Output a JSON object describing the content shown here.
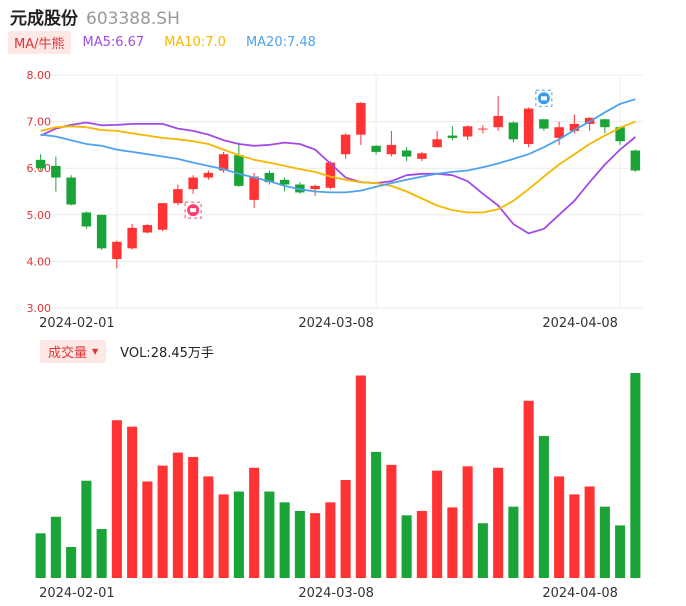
{
  "header": {
    "name": "元成股份",
    "code": "603388.SH"
  },
  "ma_legend": {
    "toggle_label": "MA/牛熊",
    "ma5": "MA5:6.67",
    "ma10": "MA10:7.0",
    "ma20": "MA20:7.48"
  },
  "volume_legend": {
    "toggle_label": "成交量",
    "value_text": "VOL:28.45万手"
  },
  "colors": {
    "up": "#ff3333",
    "down": "#1aa336",
    "ma5": "#a349e8",
    "ma10": "#f5b800",
    "ma20": "#4da3f0"
  },
  "chart_data": [
    {
      "type": "candlestick",
      "title": "",
      "y_ticks": [
        "3.00",
        "4.00",
        "5.00",
        "6.00",
        "7.00",
        "8.00"
      ],
      "ylim": [
        3.0,
        8.0
      ],
      "x_tick_labels": [
        {
          "index": 5,
          "label": "2024-02-01"
        },
        {
          "index": 22,
          "label": "2024-03-08"
        },
        {
          "index": 38,
          "label": "2024-04-08"
        }
      ],
      "candles": [
        {
          "open": 6.18,
          "close": 6.0,
          "high": 6.3,
          "low": 5.95
        },
        {
          "open": 6.05,
          "close": 5.8,
          "high": 6.25,
          "low": 5.5
        },
        {
          "open": 5.8,
          "close": 5.22,
          "high": 5.85,
          "low": 5.2
        },
        {
          "open": 5.05,
          "close": 4.75,
          "high": 5.07,
          "low": 4.7
        },
        {
          "open": 5.0,
          "close": 4.28,
          "high": 5.0,
          "low": 4.25
        },
        {
          "open": 4.05,
          "close": 4.42,
          "high": 4.45,
          "low": 3.85
        },
        {
          "open": 4.28,
          "close": 4.72,
          "high": 4.8,
          "low": 4.25
        },
        {
          "open": 4.62,
          "close": 4.78,
          "high": 4.8,
          "low": 4.6
        },
        {
          "open": 4.68,
          "close": 5.25,
          "high": 5.25,
          "low": 4.65
        },
        {
          "open": 5.25,
          "close": 5.55,
          "high": 5.65,
          "low": 5.2
        },
        {
          "open": 5.55,
          "close": 5.8,
          "high": 5.85,
          "low": 5.45
        },
        {
          "open": 5.8,
          "close": 5.9,
          "high": 5.95,
          "low": 5.75
        },
        {
          "open": 5.95,
          "close": 6.3,
          "high": 6.35,
          "low": 5.9
        },
        {
          "open": 6.28,
          "close": 5.62,
          "high": 6.55,
          "low": 5.6
        },
        {
          "open": 5.32,
          "close": 5.82,
          "high": 5.9,
          "low": 5.15
        },
        {
          "open": 5.9,
          "close": 5.7,
          "high": 5.95,
          "low": 5.65
        },
        {
          "open": 5.75,
          "close": 5.65,
          "high": 5.8,
          "low": 5.5
        },
        {
          "open": 5.65,
          "close": 5.48,
          "high": 5.7,
          "low": 5.45
        },
        {
          "open": 5.55,
          "close": 5.62,
          "high": 5.65,
          "low": 5.4
        },
        {
          "open": 5.58,
          "close": 6.12,
          "high": 6.15,
          "low": 5.55
        },
        {
          "open": 6.3,
          "close": 6.72,
          "high": 6.75,
          "low": 6.2
        },
        {
          "open": 6.72,
          "close": 7.4,
          "high": 7.42,
          "low": 6.5
        },
        {
          "open": 6.48,
          "close": 6.35,
          "high": 6.5,
          "low": 6.3
        },
        {
          "open": 6.3,
          "close": 6.5,
          "high": 6.8,
          "low": 6.25
        },
        {
          "open": 6.38,
          "close": 6.25,
          "high": 6.45,
          "low": 6.15
        },
        {
          "open": 6.2,
          "close": 6.32,
          "high": 6.35,
          "low": 6.15
        },
        {
          "open": 6.45,
          "close": 6.62,
          "high": 6.8,
          "low": 6.45
        },
        {
          "open": 6.7,
          "close": 6.65,
          "high": 6.9,
          "low": 6.6
        },
        {
          "open": 6.68,
          "close": 6.9,
          "high": 6.92,
          "low": 6.6
        },
        {
          "open": 6.85,
          "close": 6.85,
          "high": 6.92,
          "low": 6.75
        },
        {
          "open": 6.88,
          "close": 7.12,
          "high": 7.55,
          "low": 6.8
        },
        {
          "open": 6.98,
          "close": 6.62,
          "high": 7.0,
          "low": 6.55
        },
        {
          "open": 6.52,
          "close": 7.28,
          "high": 7.3,
          "low": 6.45
        },
        {
          "open": 7.05,
          "close": 6.85,
          "high": 7.05,
          "low": 6.8
        },
        {
          "open": 6.65,
          "close": 6.88,
          "high": 7.0,
          "low": 6.5
        },
        {
          "open": 6.8,
          "close": 6.95,
          "high": 7.15,
          "low": 6.75
        },
        {
          "open": 6.95,
          "close": 7.08,
          "high": 7.1,
          "low": 6.8
        },
        {
          "open": 7.05,
          "close": 6.88,
          "high": 7.06,
          "low": 6.75
        },
        {
          "open": 6.88,
          "close": 6.58,
          "high": 6.9,
          "low": 6.5
        },
        {
          "open": 6.38,
          "close": 5.95,
          "high": 6.4,
          "low": 5.92
        }
      ],
      "series": [
        {
          "name": "MA5",
          "values": [
            6.7,
            6.85,
            6.93,
            6.98,
            6.92,
            6.93,
            6.95,
            6.95,
            6.95,
            6.85,
            6.8,
            6.72,
            6.6,
            6.52,
            6.48,
            6.5,
            6.55,
            6.52,
            6.4,
            6.1,
            5.8,
            5.7,
            5.68,
            5.72,
            5.85,
            5.88,
            5.88,
            5.85,
            5.72,
            5.45,
            5.2,
            4.8,
            4.6,
            4.7,
            5.0,
            5.3,
            5.7,
            6.08,
            6.4,
            6.67
          ]
        },
        {
          "name": "MA10",
          "values": [
            6.8,
            6.88,
            6.9,
            6.88,
            6.82,
            6.8,
            6.75,
            6.7,
            6.65,
            6.62,
            6.58,
            6.52,
            6.4,
            6.28,
            6.18,
            6.12,
            6.05,
            5.98,
            5.92,
            5.82,
            5.75,
            5.7,
            5.68,
            5.62,
            5.5,
            5.35,
            5.2,
            5.1,
            5.05,
            5.05,
            5.12,
            5.3,
            5.55,
            5.82,
            6.08,
            6.3,
            6.52,
            6.7,
            6.87,
            7.0
          ]
        },
        {
          "name": "MA20",
          "values": [
            6.72,
            6.68,
            6.6,
            6.52,
            6.48,
            6.4,
            6.35,
            6.3,
            6.25,
            6.2,
            6.12,
            6.05,
            5.98,
            5.88,
            5.8,
            5.72,
            5.62,
            5.55,
            5.5,
            5.48,
            5.48,
            5.52,
            5.6,
            5.68,
            5.75,
            5.82,
            5.88,
            5.92,
            5.95,
            6.02,
            6.1,
            6.2,
            6.3,
            6.45,
            6.62,
            6.82,
            7.0,
            7.2,
            7.38,
            7.48
          ]
        }
      ]
    },
    {
      "type": "bar",
      "title": "",
      "x_tick_labels": [
        {
          "index": 5,
          "label": "2024-02-01"
        },
        {
          "index": 22,
          "label": "2024-03-08"
        },
        {
          "index": 38,
          "label": "2024-04-08"
        }
      ],
      "values": [
        6.2,
        8.5,
        4.3,
        13.5,
        6.8,
        21.9,
        21.0,
        13.4,
        15.6,
        17.4,
        16.8,
        14.1,
        11.6,
        12.0,
        15.3,
        12.0,
        10.5,
        9.3,
        9.0,
        10.5,
        13.6,
        28.1,
        17.5,
        15.7,
        8.7,
        9.3,
        14.9,
        9.8,
        15.5,
        7.6,
        15.3,
        9.9,
        24.6,
        19.7,
        14.1,
        11.6,
        12.7,
        9.9,
        7.3,
        28.45
      ],
      "direction": [
        "down",
        "down",
        "down",
        "down",
        "down",
        "up",
        "up",
        "up",
        "up",
        "up",
        "up",
        "up",
        "up",
        "down",
        "up",
        "down",
        "down",
        "down",
        "up",
        "up",
        "up",
        "up",
        "down",
        "up",
        "down",
        "up",
        "up",
        "up",
        "up",
        "down",
        "up",
        "down",
        "up",
        "down",
        "up",
        "up",
        "up",
        "down",
        "down",
        "down"
      ]
    }
  ]
}
